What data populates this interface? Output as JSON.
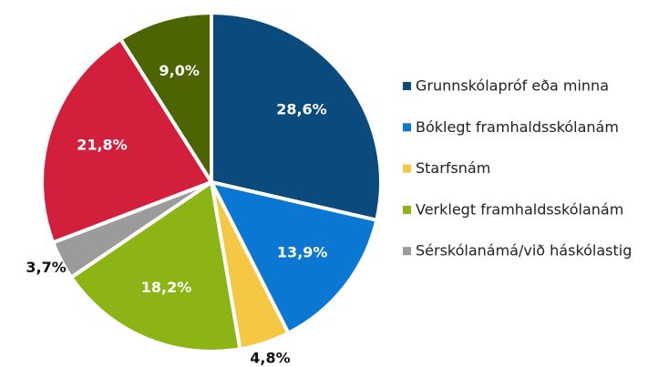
{
  "chart_data": {
    "type": "pie",
    "categories": [
      "Grunnskólapróf eða minna",
      "Bóklegt framhaldsskólanám",
      "Starfsnám",
      "Verklegt framhaldsskólanám",
      "Sérskólanámá/við háskólastig",
      null,
      null
    ],
    "values": [
      28.6,
      13.9,
      4.8,
      18.2,
      3.7,
      21.8,
      9.0
    ],
    "value_labels": [
      "28,6%",
      "13,9%",
      "4,8%",
      "18,2%",
      "3,7%",
      "21,8%",
      "9,0%"
    ],
    "colors": [
      "#0b4a7d",
      "#0a78d2",
      "#f4c842",
      "#8cb414",
      "#9b9b9b",
      "#d2203c",
      "#4c6402"
    ],
    "legend": "right"
  }
}
